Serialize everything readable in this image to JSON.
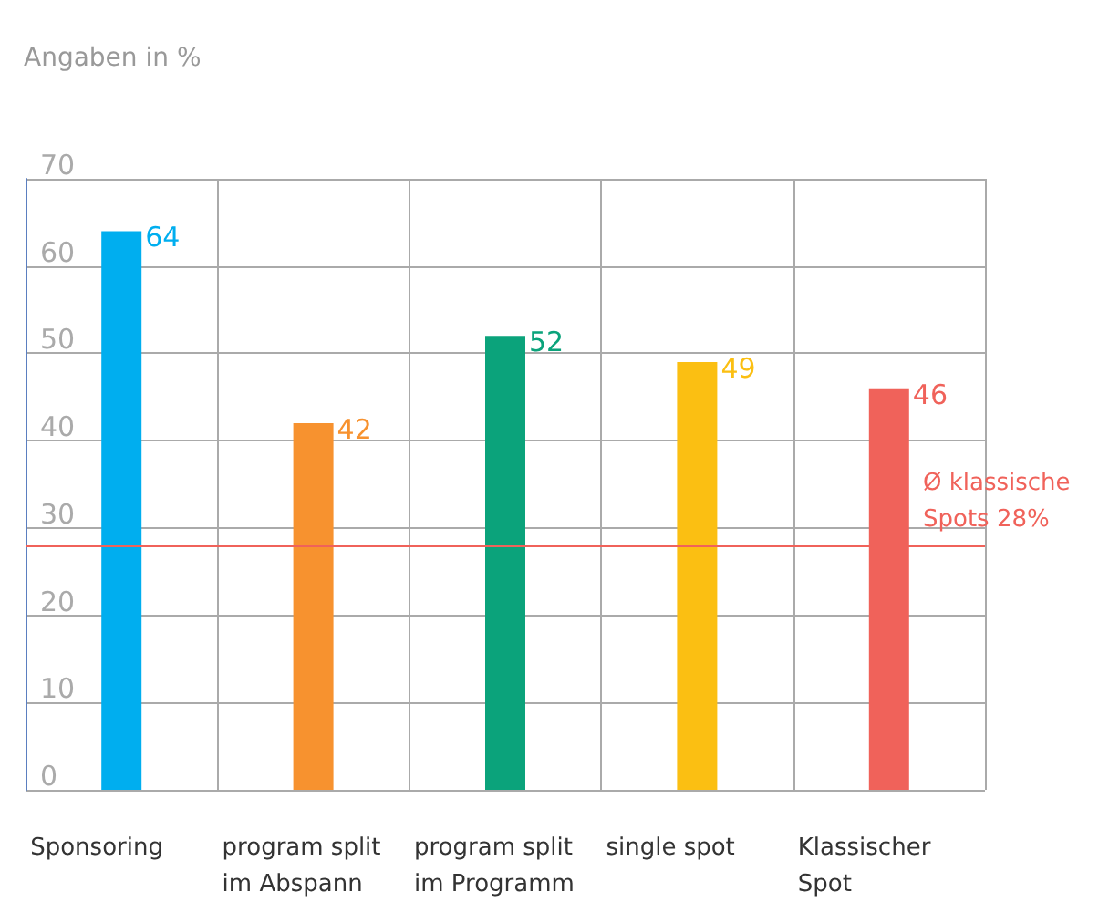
{
  "chart_data": {
    "type": "bar",
    "ylabel": "Angaben in %",
    "categories": [
      "Sponsoring",
      "program split\nim Abspann",
      "program split\nim Programm",
      "single spot",
      "Klassischer\nSpot"
    ],
    "values": [
      64,
      42,
      52,
      49,
      46
    ],
    "colors": [
      "#00aeef",
      "#f7922f",
      "#0ba37b",
      "#fbbf12",
      "#f0625a"
    ],
    "ylim": [
      0,
      70
    ],
    "yticks": [
      0,
      10,
      20,
      30,
      40,
      50,
      60,
      70
    ],
    "grid": true,
    "data_labels": true,
    "ref_lines": [
      {
        "axis": "y",
        "value": 28,
        "label": "Ø klassische\nSpots 28%",
        "color": "#f0625a"
      }
    ]
  }
}
